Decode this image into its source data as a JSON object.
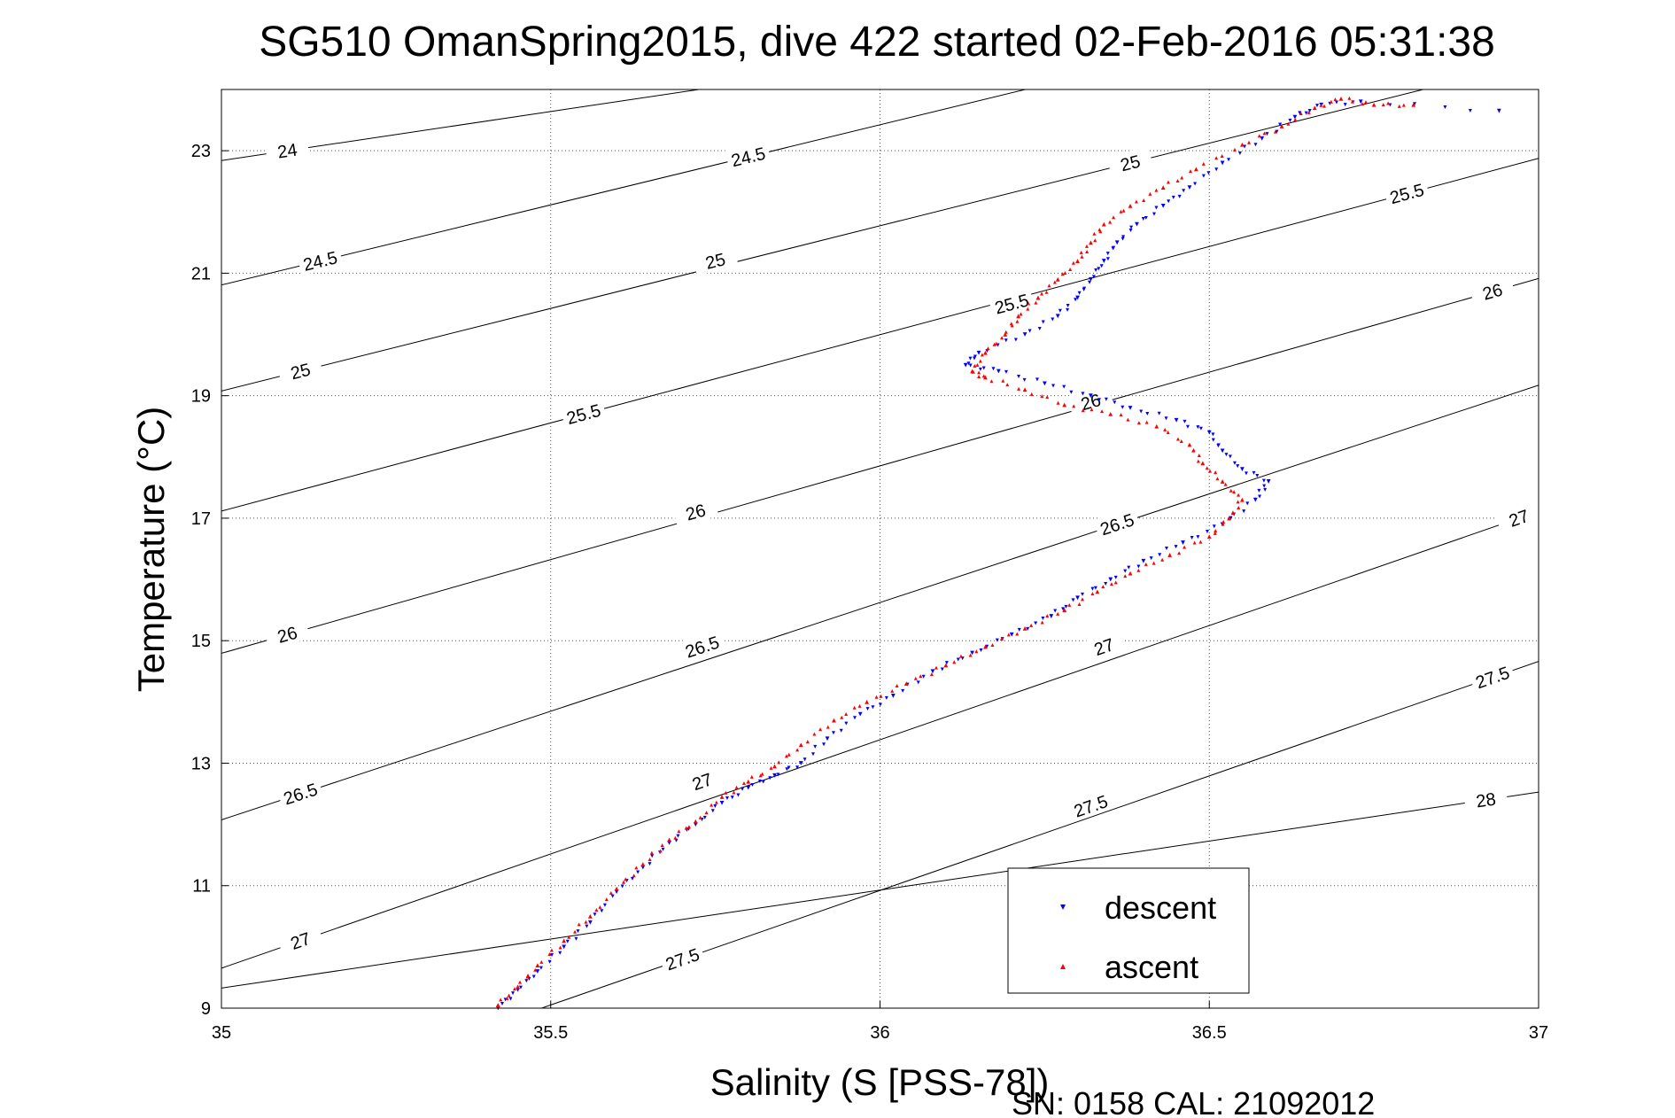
{
  "chart_data": {
    "type": "scatter",
    "title": "SG510 OmanSpring2015, dive 422 started 02-Feb-2016 05:31:38",
    "xlabel": "Salinity (S [PSS-78])",
    "ylabel": "Temperature (°C)",
    "xlim": [
      35,
      37
    ],
    "ylim": [
      9,
      24
    ],
    "x_ticks": [
      "35",
      "35.5",
      "36",
      "36.5",
      "37"
    ],
    "y_ticks": [
      "9",
      "11",
      "13",
      "15",
      "17",
      "19",
      "21",
      "23"
    ],
    "grid": true,
    "legend_position": "bottom-right",
    "series": [
      {
        "name": "descent",
        "color": "#0000ff",
        "marker": "triangle-down",
        "points": [
          [
            35.42,
            9.0
          ],
          [
            35.45,
            9.3
          ],
          [
            35.48,
            9.6
          ],
          [
            35.52,
            10.0
          ],
          [
            35.56,
            10.4
          ],
          [
            35.6,
            10.9
          ],
          [
            35.64,
            11.3
          ],
          [
            35.68,
            11.7
          ],
          [
            35.72,
            12.0
          ],
          [
            35.76,
            12.35
          ],
          [
            35.8,
            12.6
          ],
          [
            35.84,
            12.8
          ],
          [
            35.88,
            13.0
          ],
          [
            35.92,
            13.4
          ],
          [
            35.97,
            13.8
          ],
          [
            36.02,
            14.1
          ],
          [
            36.08,
            14.5
          ],
          [
            36.14,
            14.8
          ],
          [
            36.2,
            15.1
          ],
          [
            36.26,
            15.4
          ],
          [
            36.3,
            15.7
          ],
          [
            36.35,
            16.0
          ],
          [
            36.4,
            16.3
          ],
          [
            36.46,
            16.6
          ],
          [
            36.52,
            16.9
          ],
          [
            36.57,
            17.3
          ],
          [
            36.59,
            17.6
          ],
          [
            36.55,
            17.8
          ],
          [
            36.52,
            18.1
          ],
          [
            36.5,
            18.4
          ],
          [
            36.45,
            18.6
          ],
          [
            36.38,
            18.8
          ],
          [
            36.32,
            19.0
          ],
          [
            36.25,
            19.2
          ],
          [
            36.18,
            19.4
          ],
          [
            36.13,
            19.5
          ],
          [
            36.15,
            19.7
          ],
          [
            36.22,
            20.0
          ],
          [
            36.27,
            20.3
          ],
          [
            36.3,
            20.6
          ],
          [
            36.32,
            20.9
          ],
          [
            36.34,
            21.2
          ],
          [
            36.36,
            21.5
          ],
          [
            36.39,
            21.8
          ],
          [
            36.43,
            22.1
          ],
          [
            36.47,
            22.4
          ],
          [
            36.52,
            22.8
          ],
          [
            36.58,
            23.2
          ],
          [
            36.63,
            23.55
          ],
          [
            36.67,
            23.75
          ],
          [
            36.73,
            23.8
          ],
          [
            36.94,
            23.65
          ]
        ]
      },
      {
        "name": "ascent",
        "color": "#ff0000",
        "marker": "triangle-up",
        "points": [
          [
            35.42,
            9.05
          ],
          [
            35.45,
            9.35
          ],
          [
            35.48,
            9.7
          ],
          [
            35.52,
            10.1
          ],
          [
            35.56,
            10.5
          ],
          [
            35.6,
            10.95
          ],
          [
            35.64,
            11.35
          ],
          [
            35.68,
            11.75
          ],
          [
            35.72,
            12.05
          ],
          [
            35.76,
            12.45
          ],
          [
            35.8,
            12.7
          ],
          [
            35.84,
            12.95
          ],
          [
            35.88,
            13.3
          ],
          [
            35.93,
            13.7
          ],
          [
            35.98,
            14.0
          ],
          [
            36.04,
            14.3
          ],
          [
            36.1,
            14.6
          ],
          [
            36.16,
            14.9
          ],
          [
            36.22,
            15.2
          ],
          [
            36.28,
            15.5
          ],
          [
            36.33,
            15.8
          ],
          [
            36.38,
            16.1
          ],
          [
            36.44,
            16.4
          ],
          [
            36.5,
            16.7
          ],
          [
            36.53,
            17.0
          ],
          [
            36.55,
            17.3
          ],
          [
            36.52,
            17.6
          ],
          [
            36.49,
            17.9
          ],
          [
            36.47,
            18.2
          ],
          [
            36.42,
            18.5
          ],
          [
            36.35,
            18.7
          ],
          [
            36.28,
            18.85
          ],
          [
            36.22,
            19.1
          ],
          [
            36.16,
            19.3
          ],
          [
            36.14,
            19.4
          ],
          [
            36.16,
            19.7
          ],
          [
            36.19,
            20.0
          ],
          [
            36.21,
            20.3
          ],
          [
            36.24,
            20.6
          ],
          [
            36.27,
            20.9
          ],
          [
            36.3,
            21.2
          ],
          [
            36.32,
            21.5
          ],
          [
            36.34,
            21.8
          ],
          [
            36.38,
            22.1
          ],
          [
            36.43,
            22.4
          ],
          [
            36.48,
            22.7
          ],
          [
            36.55,
            23.1
          ],
          [
            36.61,
            23.4
          ],
          [
            36.66,
            23.7
          ],
          [
            36.7,
            23.85
          ],
          [
            36.75,
            23.75
          ],
          [
            36.81,
            23.75
          ]
        ]
      }
    ],
    "contours": [
      {
        "label": "24",
        "label_at": [
          [
            35.1,
            23.0
          ]
        ]
      },
      {
        "label": "24.5",
        "label_at": [
          [
            35.15,
            21.2
          ],
          [
            35.8,
            22.9
          ]
        ]
      },
      {
        "label": "25",
        "label_at": [
          [
            35.12,
            19.4
          ],
          [
            35.75,
            21.2
          ],
          [
            36.38,
            22.8
          ]
        ]
      },
      {
        "label": "25.5",
        "label_at": [
          [
            35.55,
            18.7
          ],
          [
            36.2,
            20.5
          ],
          [
            36.8,
            22.3
          ]
        ]
      },
      {
        "label": "26",
        "label_at": [
          [
            35.1,
            15.1
          ],
          [
            35.72,
            17.1
          ],
          [
            36.32,
            18.9
          ],
          [
            36.93,
            20.7
          ]
        ]
      },
      {
        "label": "26.5",
        "label_at": [
          [
            35.12,
            12.5
          ],
          [
            35.73,
            14.9
          ],
          [
            36.36,
            16.9
          ]
        ]
      },
      {
        "label": "27",
        "label_at": [
          [
            35.12,
            10.1
          ],
          [
            35.73,
            12.7
          ],
          [
            36.34,
            14.9
          ],
          [
            36.97,
            17.0
          ]
        ]
      },
      {
        "label": "27.5",
        "label_at": [
          [
            35.7,
            9.8
          ],
          [
            36.32,
            12.3
          ],
          [
            36.93,
            14.4
          ]
        ]
      },
      {
        "label": "28",
        "label_at": [
          [
            36.92,
            12.4
          ]
        ]
      }
    ],
    "footer": "SN: 0158  CAL: 21092012"
  }
}
